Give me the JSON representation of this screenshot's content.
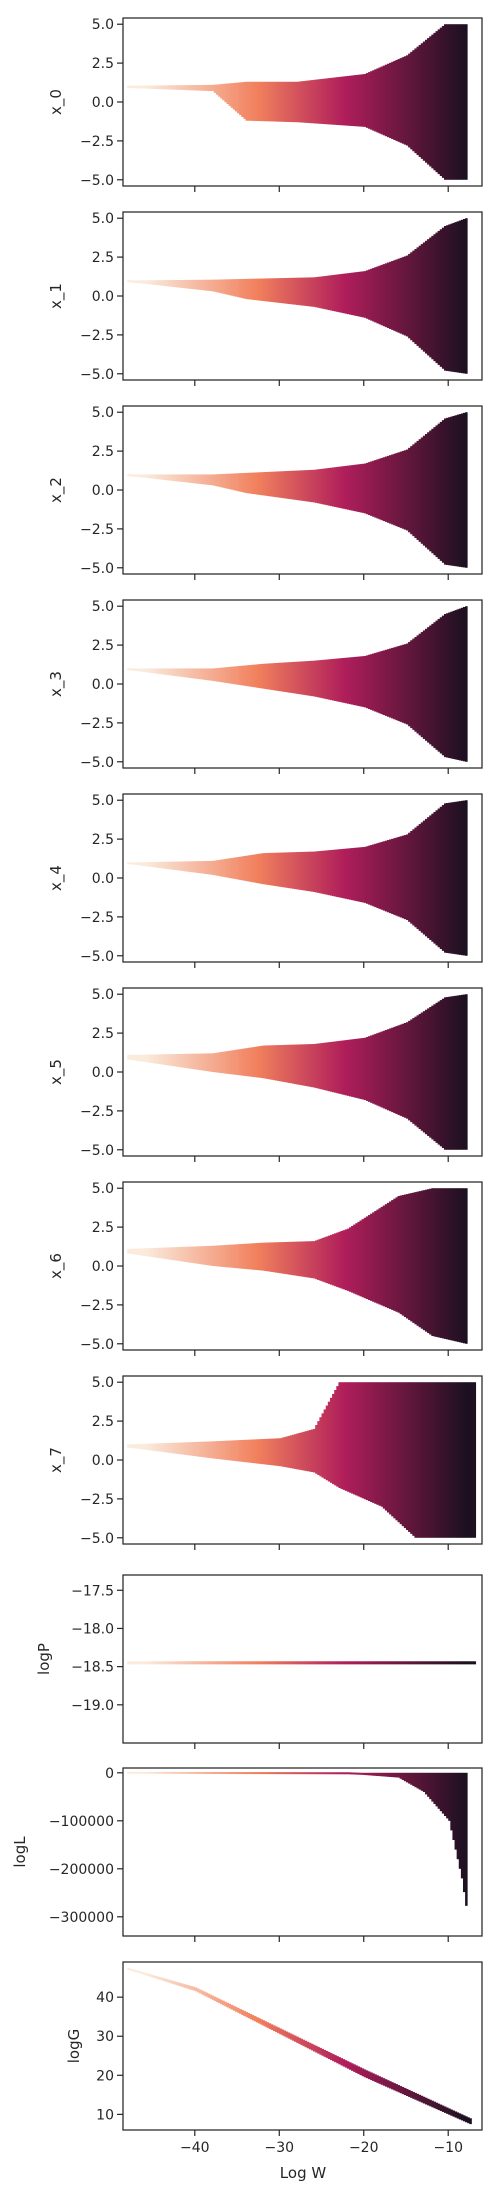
{
  "figure": {
    "xlabel": "Log W",
    "colormap": "rocket",
    "colors": {
      "bright": "#faebdd",
      "orange": "#f1805d",
      "magenta": "#b01e5b",
      "dark": "#1c1021",
      "spine": "#262626"
    }
  },
  "chart_data": [
    {
      "type": "scatter",
      "ylabel": "x_0",
      "xlim": [
        -48.5,
        -6
      ],
      "ylim": [
        -5.4,
        5.4
      ],
      "xticks": [
        -40,
        -30,
        -20,
        -10
      ],
      "yticks": [
        5.0,
        2.5,
        0.0,
        -2.5,
        -5.0
      ],
      "ytick_labels": [
        "5.0",
        "2.5",
        "0.0",
        "−2.5",
        "−5.0"
      ],
      "envelope": [
        {
          "x": -48,
          "upper": 1.05,
          "lower": 0.9
        },
        {
          "x": -38,
          "upper": 1.1,
          "lower": 0.7
        },
        {
          "x": -34,
          "upper": 1.3,
          "lower": -1.2
        },
        {
          "x": -28,
          "upper": 1.3,
          "lower": -1.3
        },
        {
          "x": -20,
          "upper": 1.8,
          "lower": -1.6
        },
        {
          "x": -15,
          "upper": 3.0,
          "lower": -2.8
        },
        {
          "x": -10.5,
          "upper": 5.0,
          "lower": -5.0
        },
        {
          "x": -8,
          "upper": 5.0,
          "lower": -5.0
        }
      ]
    },
    {
      "type": "scatter",
      "ylabel": "x_1",
      "xlim": [
        -48.5,
        -6
      ],
      "ylim": [
        -5.4,
        5.4
      ],
      "xticks": [
        -40,
        -30,
        -20,
        -10
      ],
      "yticks": [
        5.0,
        2.5,
        0.0,
        -2.5,
        -5.0
      ],
      "ytick_labels": [
        "5.0",
        "2.5",
        "0.0",
        "−2.5",
        "−5.0"
      ],
      "envelope": [
        {
          "x": -48,
          "upper": 1.0,
          "lower": 0.9
        },
        {
          "x": -38,
          "upper": 1.05,
          "lower": 0.3
        },
        {
          "x": -34,
          "upper": 1.1,
          "lower": -0.2
        },
        {
          "x": -26,
          "upper": 1.2,
          "lower": -0.7
        },
        {
          "x": -20,
          "upper": 1.6,
          "lower": -1.4
        },
        {
          "x": -15,
          "upper": 2.6,
          "lower": -2.6
        },
        {
          "x": -10.5,
          "upper": 4.5,
          "lower": -4.8
        },
        {
          "x": -8,
          "upper": 5.0,
          "lower": -5.0
        }
      ]
    },
    {
      "type": "scatter",
      "ylabel": "x_2",
      "xlim": [
        -48.5,
        -6
      ],
      "ylim": [
        -5.4,
        5.4
      ],
      "xticks": [
        -40,
        -30,
        -20,
        -10
      ],
      "yticks": [
        5.0,
        2.5,
        0.0,
        -2.5,
        -5.0
      ],
      "ytick_labels": [
        "5.0",
        "2.5",
        "0.0",
        "−2.5",
        "−5.0"
      ],
      "envelope": [
        {
          "x": -48,
          "upper": 1.0,
          "lower": 0.9
        },
        {
          "x": -38,
          "upper": 1.0,
          "lower": 0.3
        },
        {
          "x": -34,
          "upper": 1.1,
          "lower": -0.2
        },
        {
          "x": -26,
          "upper": 1.3,
          "lower": -0.8
        },
        {
          "x": -20,
          "upper": 1.7,
          "lower": -1.5
        },
        {
          "x": -15,
          "upper": 2.6,
          "lower": -2.6
        },
        {
          "x": -10.5,
          "upper": 4.6,
          "lower": -4.8
        },
        {
          "x": -8,
          "upper": 5.0,
          "lower": -5.0
        }
      ]
    },
    {
      "type": "scatter",
      "ylabel": "x_3",
      "xlim": [
        -48.5,
        -6
      ],
      "ylim": [
        -5.4,
        5.4
      ],
      "xticks": [
        -40,
        -30,
        -20,
        -10
      ],
      "yticks": [
        5.0,
        2.5,
        0.0,
        -2.5,
        -5.0
      ],
      "ytick_labels": [
        "5.0",
        "2.5",
        "0.0",
        "−2.5",
        "−5.0"
      ],
      "envelope": [
        {
          "x": -48,
          "upper": 1.0,
          "lower": 0.9
        },
        {
          "x": -38,
          "upper": 1.0,
          "lower": 0.2
        },
        {
          "x": -32,
          "upper": 1.3,
          "lower": -0.3
        },
        {
          "x": -26,
          "upper": 1.5,
          "lower": -0.8
        },
        {
          "x": -20,
          "upper": 1.8,
          "lower": -1.5
        },
        {
          "x": -15,
          "upper": 2.6,
          "lower": -2.6
        },
        {
          "x": -10.5,
          "upper": 4.5,
          "lower": -4.7
        },
        {
          "x": -8,
          "upper": 5.0,
          "lower": -5.0
        }
      ]
    },
    {
      "type": "scatter",
      "ylabel": "x_4",
      "xlim": [
        -48.5,
        -6
      ],
      "ylim": [
        -5.4,
        5.4
      ],
      "xticks": [
        -40,
        -30,
        -20,
        -10
      ],
      "yticks": [
        5.0,
        2.5,
        0.0,
        -2.5,
        -5.0
      ],
      "ytick_labels": [
        "5.0",
        "2.5",
        "0.0",
        "−2.5",
        "−5.0"
      ],
      "envelope": [
        {
          "x": -48,
          "upper": 1.0,
          "lower": 0.9
        },
        {
          "x": -38,
          "upper": 1.1,
          "lower": 0.2
        },
        {
          "x": -32,
          "upper": 1.6,
          "lower": -0.4
        },
        {
          "x": -26,
          "upper": 1.7,
          "lower": -0.9
        },
        {
          "x": -20,
          "upper": 2.0,
          "lower": -1.6
        },
        {
          "x": -15,
          "upper": 2.8,
          "lower": -2.7
        },
        {
          "x": -10.5,
          "upper": 4.8,
          "lower": -4.8
        },
        {
          "x": -8,
          "upper": 5.0,
          "lower": -5.0
        }
      ]
    },
    {
      "type": "scatter",
      "ylabel": "x_5",
      "xlim": [
        -48.5,
        -6
      ],
      "ylim": [
        -5.4,
        5.4
      ],
      "xticks": [
        -40,
        -30,
        -20,
        -10
      ],
      "yticks": [
        5.0,
        2.5,
        0.0,
        -2.5,
        -5.0
      ],
      "ytick_labels": [
        "5.0",
        "2.5",
        "0.0",
        "−2.5",
        "−5.0"
      ],
      "envelope": [
        {
          "x": -48,
          "upper": 1.1,
          "lower": 0.8
        },
        {
          "x": -38,
          "upper": 1.2,
          "lower": 0.0
        },
        {
          "x": -32,
          "upper": 1.7,
          "lower": -0.4
        },
        {
          "x": -26,
          "upper": 1.8,
          "lower": -1.0
        },
        {
          "x": -20,
          "upper": 2.2,
          "lower": -1.8
        },
        {
          "x": -15,
          "upper": 3.2,
          "lower": -3.0
        },
        {
          "x": -10.5,
          "upper": 4.8,
          "lower": -5.0
        },
        {
          "x": -8,
          "upper": 5.0,
          "lower": -5.0
        }
      ]
    },
    {
      "type": "scatter",
      "ylabel": "x_6",
      "xlim": [
        -48.5,
        -6
      ],
      "ylim": [
        -5.4,
        5.4
      ],
      "xticks": [
        -40,
        -30,
        -20,
        -10
      ],
      "yticks": [
        5.0,
        2.5,
        0.0,
        -2.5,
        -5.0
      ],
      "ytick_labels": [
        "5.0",
        "2.5",
        "0.0",
        "−2.5",
        "−5.0"
      ],
      "envelope": [
        {
          "x": -48,
          "upper": 1.1,
          "lower": 0.8
        },
        {
          "x": -38,
          "upper": 1.3,
          "lower": 0.0
        },
        {
          "x": -32,
          "upper": 1.5,
          "lower": -0.3
        },
        {
          "x": -26,
          "upper": 1.6,
          "lower": -0.8
        },
        {
          "x": -22,
          "upper": 2.4,
          "lower": -1.6
        },
        {
          "x": -16,
          "upper": 4.5,
          "lower": -3.0
        },
        {
          "x": -12,
          "upper": 5.0,
          "lower": -4.5
        },
        {
          "x": -8,
          "upper": 5.0,
          "lower": -5.0
        }
      ]
    },
    {
      "type": "scatter",
      "ylabel": "x_7",
      "xlim": [
        -48.5,
        -6
      ],
      "ylim": [
        -5.4,
        5.4
      ],
      "xticks": [
        -40,
        -30,
        -20,
        -10
      ],
      "yticks": [
        5.0,
        2.5,
        0.0,
        -2.5,
        -5.0
      ],
      "ytick_labels": [
        "5.0",
        "2.5",
        "0.0",
        "−2.5",
        "−5.0"
      ],
      "envelope": [
        {
          "x": -48,
          "upper": 1.0,
          "lower": 0.8
        },
        {
          "x": -38,
          "upper": 1.2,
          "lower": 0.1
        },
        {
          "x": -30,
          "upper": 1.4,
          "lower": -0.4
        },
        {
          "x": -26,
          "upper": 2.0,
          "lower": -0.8
        },
        {
          "x": -23,
          "upper": 5.0,
          "lower": -1.8
        },
        {
          "x": -18,
          "upper": 5.0,
          "lower": -3.0
        },
        {
          "x": -14,
          "upper": 5.0,
          "lower": -5.0
        },
        {
          "x": -7,
          "upper": 5.0,
          "lower": -5.0
        }
      ]
    },
    {
      "type": "scatter",
      "ylabel": "logP",
      "xlim": [
        -48.5,
        -6
      ],
      "ylim": [
        -19.5,
        -17.3
      ],
      "xticks": [
        -40,
        -30,
        -20,
        -10
      ],
      "yticks": [
        -17.5,
        -18.0,
        -18.5,
        -19.0
      ],
      "ytick_labels": [
        "−17.5",
        "−18.0",
        "−18.5",
        "−19.0"
      ],
      "envelope": [
        {
          "x": -48,
          "upper": -18.43,
          "lower": -18.47
        },
        {
          "x": -7,
          "upper": -18.43,
          "lower": -18.47
        }
      ]
    },
    {
      "type": "scatter",
      "ylabel": "logL",
      "xlim": [
        -48.5,
        -6
      ],
      "ylim": [
        -340000,
        10000
      ],
      "xticks": [
        -40,
        -30,
        -20,
        -10
      ],
      "yticks": [
        0,
        -100000,
        -200000,
        -300000
      ],
      "ytick_labels": [
        "0",
        "−100000",
        "−200000",
        "−300000"
      ],
      "envelope": [
        {
          "x": -48,
          "upper": 0,
          "lower": 0
        },
        {
          "x": -22,
          "upper": 0,
          "lower": -2000
        },
        {
          "x": -16,
          "upper": 0,
          "lower": -10000
        },
        {
          "x": -13,
          "upper": 0,
          "lower": -40000
        },
        {
          "x": -10,
          "upper": 0,
          "lower": -100000
        },
        {
          "x": -8.5,
          "upper": 0,
          "lower": -220000
        },
        {
          "x": -7.8,
          "upper": 0,
          "lower": -300000
        }
      ]
    },
    {
      "type": "scatter",
      "ylabel": "logG",
      "xlim": [
        -48.5,
        -6
      ],
      "ylim": [
        6,
        49
      ],
      "xticks": [
        -40,
        -30,
        -20,
        -10
      ],
      "yticks": [
        40,
        30,
        20,
        10
      ],
      "ytick_labels": [
        "40",
        "30",
        "20",
        "10"
      ],
      "envelope": [
        {
          "x": -48,
          "upper": 47.5,
          "lower": 47.0
        },
        {
          "x": -40,
          "upper": 42.5,
          "lower": 41.5
        },
        {
          "x": -30,
          "upper": 32.0,
          "lower": 30.5
        },
        {
          "x": -20,
          "upper": 21.5,
          "lower": 19.5
        },
        {
          "x": -7.5,
          "upper": 9.0,
          "lower": 7.5
        }
      ]
    }
  ]
}
